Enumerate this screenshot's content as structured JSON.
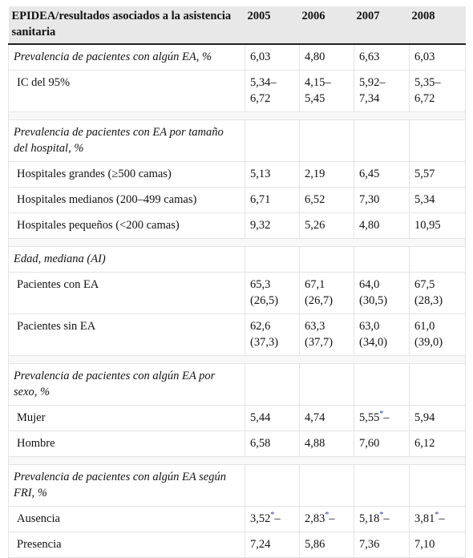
{
  "header": {
    "label": "EPIDEA/resultados asociados a la asistencia sanitaria",
    "years": [
      "2005",
      "2006",
      "2007",
      "2008"
    ]
  },
  "sections": [
    {
      "title": "Prevalencia de pacientes con algún EA, %",
      "values": [
        "6,03",
        "4,80",
        "6,63",
        "6,03"
      ],
      "rows": [
        {
          "label": "IC del 95%",
          "values": [
            "5,34–\n6,72",
            "4,15–\n5,45",
            "5,92–\n7,34",
            "5,35–\n6,72"
          ]
        }
      ]
    },
    {
      "title": "Prevalencia de pacientes con EA por tamaño del hospital, %",
      "values": [
        "",
        "",
        "",
        ""
      ],
      "rows": [
        {
          "label": "Hospitales grandes (≥500 camas)",
          "values": [
            "5,13",
            "2,19",
            "6,45",
            "5,57"
          ]
        },
        {
          "label": "Hospitales medianos (200–499 camas)",
          "values": [
            "6,71",
            "6,52",
            "7,30",
            "5,34"
          ]
        },
        {
          "label": "Hospitales pequeños (<200 camas)",
          "values": [
            "9,32",
            "5,26",
            "4,80",
            "10,95"
          ]
        }
      ]
    },
    {
      "title": "Edad, mediana (AI)",
      "values": [
        "",
        "",
        "",
        ""
      ],
      "rows": [
        {
          "label": "Pacientes con EA",
          "values": [
            "65,3\n(26,5)",
            "67,1\n(26,7)",
            "64,0\n(30,5)",
            "67,5\n(28,3)"
          ]
        },
        {
          "label": "Pacientes sin EA",
          "values": [
            "62,6\n(37,3)",
            "63,3\n(37,7)",
            "63,0\n(34,0)",
            "61,0\n(39,0)"
          ]
        }
      ]
    },
    {
      "title": "Prevalencia de pacientes con algún EA por sexo, %",
      "values": [
        "",
        "",
        "",
        ""
      ],
      "rows": [
        {
          "label": "Mujer",
          "values": [
            "5,44",
            "4,74",
            "5,55",
            "5,94"
          ],
          "marks": [
            "",
            "",
            "*",
            ""
          ]
        },
        {
          "label": "Hombre",
          "values": [
            "6,58",
            "4,88",
            "7,60",
            "6,12"
          ]
        }
      ]
    },
    {
      "title": "Prevalencia de pacientes con algún EA según FRI, %",
      "values": [
        "",
        "",
        "",
        ""
      ],
      "rows": [
        {
          "label": "Ausencia",
          "values": [
            "3,52",
            "2,83",
            "5,18",
            "3,81"
          ],
          "marks": [
            "*",
            "*",
            "*",
            "*"
          ]
        },
        {
          "label": "Presencia",
          "values": [
            "7,24",
            "5,86",
            "7,36",
            "7,10"
          ]
        }
      ]
    }
  ]
}
